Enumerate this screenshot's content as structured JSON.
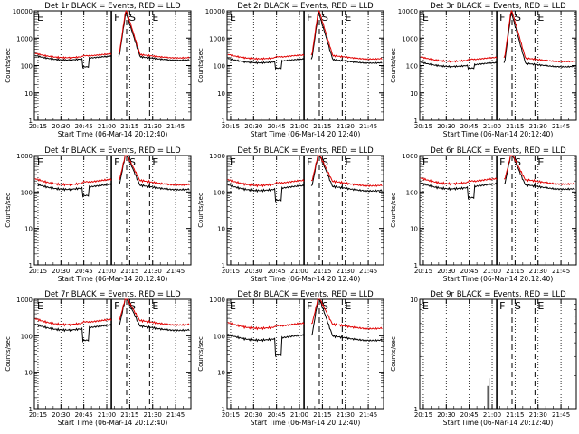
{
  "figure": {
    "xlabel_prefix": "Start Time (06-Mar-14 20:12:40)",
    "ylabel": "Counts/sec",
    "xtick_labels": [
      "20:15",
      "20:30",
      "20:45",
      "21:00",
      "21:15",
      "21:30",
      "21:45"
    ],
    "marker_labels": [
      "E",
      "F",
      "S",
      "E"
    ]
  },
  "chart_data": [
    {
      "type": "line",
      "title": "Det 1r BLACK = Events, RED = LLD",
      "ylim": [
        1,
        10000
      ],
      "yscale": "log",
      "ytick_labels": [
        "1",
        "10",
        "100",
        "1000",
        "10000"
      ],
      "x_range_minutes": [
        "20:12:40",
        "21:55:00"
      ],
      "solid_vline": "21:03",
      "dashed_vlines": [
        "21:13",
        "21:28"
      ],
      "dotted_vlines": [
        "20:15",
        "20:30",
        "20:45",
        "21:00",
        "21:15",
        "21:30",
        "21:45"
      ],
      "series": [
        {
          "name": "Events",
          "color": "#000000",
          "baseline": 190,
          "peak": 9000,
          "dip": 90
        },
        {
          "name": "LLD",
          "color": "#e00000",
          "baseline": 230,
          "peak": 12000,
          "dip": 230
        }
      ]
    },
    {
      "type": "line",
      "title": "Det 2r BLACK = Events, RED = LLD",
      "ylim": [
        1,
        10000
      ],
      "yscale": "log",
      "ytick_labels": [
        "1",
        "10",
        "100",
        "1000",
        "10000"
      ],
      "solid_vline": "21:03",
      "dashed_vlines": [
        "21:13",
        "21:28"
      ],
      "series": [
        {
          "name": "Events",
          "color": "#000000",
          "baseline": 150,
          "peak": 9000,
          "dip": 80
        },
        {
          "name": "LLD",
          "color": "#e00000",
          "baseline": 210,
          "peak": 12000,
          "dip": 210
        }
      ]
    },
    {
      "type": "line",
      "title": "Det 3r BLACK = Events, RED = LLD",
      "ylim": [
        1,
        10000
      ],
      "yscale": "log",
      "ytick_labels": [
        "1",
        "10",
        "100",
        "1000",
        "10000"
      ],
      "solid_vline": "21:03",
      "dashed_vlines": [
        "21:13",
        "21:28"
      ],
      "series": [
        {
          "name": "Events",
          "color": "#000000",
          "baseline": 110,
          "peak": 9000,
          "dip": 80
        },
        {
          "name": "LLD",
          "color": "#e00000",
          "baseline": 170,
          "peak": 12000,
          "dip": 170
        }
      ]
    },
    {
      "type": "line",
      "title": "Det 4r BLACK = Events, RED = LLD",
      "ylim": [
        1,
        1000
      ],
      "yscale": "log",
      "ytick_labels": [
        "1",
        "10",
        "100",
        "1000"
      ],
      "solid_vline": "21:03",
      "dashed_vlines": [
        "21:13",
        "21:28"
      ],
      "series": [
        {
          "name": "Events",
          "color": "#000000",
          "baseline": 140,
          "peak": 1200,
          "dip": 80
        },
        {
          "name": "LLD",
          "color": "#e00000",
          "baseline": 190,
          "peak": 1200,
          "dip": 190
        }
      ]
    },
    {
      "type": "line",
      "title": "Det 5r BLACK = Events, RED = LLD",
      "ylim": [
        1,
        1000
      ],
      "yscale": "log",
      "ytick_labels": [
        "1",
        "10",
        "100",
        "1000"
      ],
      "solid_vline": "21:03",
      "dashed_vlines": [
        "21:13",
        "21:28"
      ],
      "series": [
        {
          "name": "Events",
          "color": "#000000",
          "baseline": 130,
          "peak": 1200,
          "dip": 60
        },
        {
          "name": "LLD",
          "color": "#e00000",
          "baseline": 180,
          "peak": 1200,
          "dip": 180
        }
      ]
    },
    {
      "type": "line",
      "title": "Det 6r BLACK = Events, RED = LLD",
      "ylim": [
        1,
        1000
      ],
      "yscale": "log",
      "ytick_labels": [
        "1",
        "10",
        "100",
        "1000"
      ],
      "solid_vline": "21:03",
      "dashed_vlines": [
        "21:13",
        "21:28"
      ],
      "series": [
        {
          "name": "Events",
          "color": "#000000",
          "baseline": 145,
          "peak": 1200,
          "dip": 70
        },
        {
          "name": "LLD",
          "color": "#e00000",
          "baseline": 200,
          "peak": 1200,
          "dip": 200
        }
      ]
    },
    {
      "type": "line",
      "title": "Det 7r BLACK = Events, RED = LLD",
      "ylim": [
        1,
        1000
      ],
      "yscale": "log",
      "ytick_labels": [
        "1",
        "10",
        "100",
        "1000"
      ],
      "solid_vline": "21:03",
      "dashed_vlines": [
        "21:13",
        "21:28"
      ],
      "series": [
        {
          "name": "Events",
          "color": "#000000",
          "baseline": 170,
          "peak": 1200,
          "dip": 75
        },
        {
          "name": "LLD",
          "color": "#e00000",
          "baseline": 240,
          "peak": 1200,
          "dip": 240
        }
      ]
    },
    {
      "type": "line",
      "title": "Det 8r BLACK = Events, RED = LLD",
      "ylim": [
        1,
        1000
      ],
      "yscale": "log",
      "ytick_labels": [
        "1",
        "10",
        "100",
        "1000"
      ],
      "solid_vline": "21:03",
      "dashed_vlines": [
        "21:13",
        "21:28"
      ],
      "series": [
        {
          "name": "Events",
          "color": "#000000",
          "baseline": 90,
          "peak": 1200,
          "dip": 30
        },
        {
          "name": "LLD",
          "color": "#e00000",
          "baseline": 190,
          "peak": 1200,
          "dip": 190
        }
      ]
    },
    {
      "type": "line",
      "title": "Det 9r BLACK = Events, RED = LLD",
      "ylim": [
        1,
        10
      ],
      "yscale": "log",
      "ytick_labels": [
        "1",
        "10"
      ],
      "solid_vline": "21:03",
      "dashed_vlines": [
        "21:13",
        "21:28"
      ],
      "series": [
        {
          "name": "Events",
          "color": "#000000",
          "baseline": 1,
          "peak": 1,
          "dip": 1,
          "spike_time": "20:58",
          "spike_value": 1.9
        }
      ]
    }
  ]
}
